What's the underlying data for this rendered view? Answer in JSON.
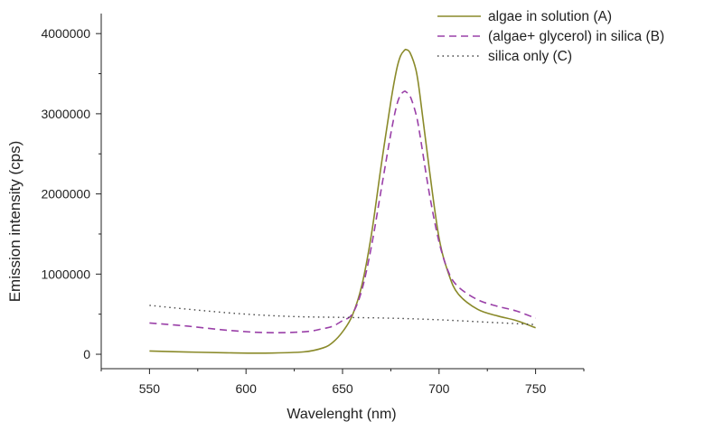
{
  "chart_data": {
    "type": "line",
    "title": "",
    "xlabel": "Wavelenght (nm)",
    "ylabel": "Emission intensity (cps)",
    "xlim": [
      525,
      775
    ],
    "ylim": [
      -180000,
      4250000
    ],
    "xticks": [
      550,
      600,
      650,
      700,
      750
    ],
    "xtick_labels": [
      "550",
      "600",
      "650",
      "700",
      "750"
    ],
    "yticks": [
      0,
      1000000,
      2000000,
      3000000,
      4000000
    ],
    "ytick_labels": [
      "0",
      "1000000",
      "2000000",
      "3000000",
      "4000000"
    ],
    "legend_position": "top-right",
    "grid": false,
    "series": [
      {
        "name": "algae in solution (A)",
        "color": "#8a8a2a",
        "style": "solid",
        "x": [
          550,
          570,
          590,
          610,
          630,
          640,
          645,
          650,
          655,
          660,
          665,
          670,
          675,
          678,
          680,
          682,
          683,
          685,
          688,
          690,
          695,
          700,
          705,
          710,
          720,
          730,
          740,
          750
        ],
        "y": [
          40000,
          28000,
          18000,
          14000,
          30000,
          80000,
          150000,
          280000,
          480000,
          860000,
          1500000,
          2350000,
          3150000,
          3550000,
          3720000,
          3790000,
          3800000,
          3760000,
          3550000,
          3250000,
          2300000,
          1450000,
          1000000,
          750000,
          560000,
          480000,
          420000,
          330000
        ]
      },
      {
        "name": "(algae+ glycerol) in silica (B)",
        "color": "#9a40a8",
        "style": "dashed",
        "x": [
          550,
          570,
          590,
          610,
          630,
          640,
          645,
          650,
          655,
          660,
          665,
          670,
          675,
          678,
          680,
          682,
          683,
          685,
          688,
          690,
          695,
          700,
          705,
          710,
          720,
          730,
          740,
          750
        ],
        "y": [
          390000,
          350000,
          300000,
          270000,
          280000,
          320000,
          350000,
          420000,
          500000,
          800000,
          1350000,
          2050000,
          2750000,
          3100000,
          3230000,
          3280000,
          3270000,
          3220000,
          3000000,
          2750000,
          2000000,
          1400000,
          1020000,
          840000,
          680000,
          600000,
          540000,
          450000
        ]
      },
      {
        "name": "silica only (C)",
        "color": "#444444",
        "style": "dotted",
        "x": [
          550,
          575,
          600,
          625,
          650,
          675,
          700,
          725,
          750
        ],
        "y": [
          610000,
          550000,
          500000,
          470000,
          460000,
          450000,
          430000,
          400000,
          370000
        ]
      }
    ]
  }
}
